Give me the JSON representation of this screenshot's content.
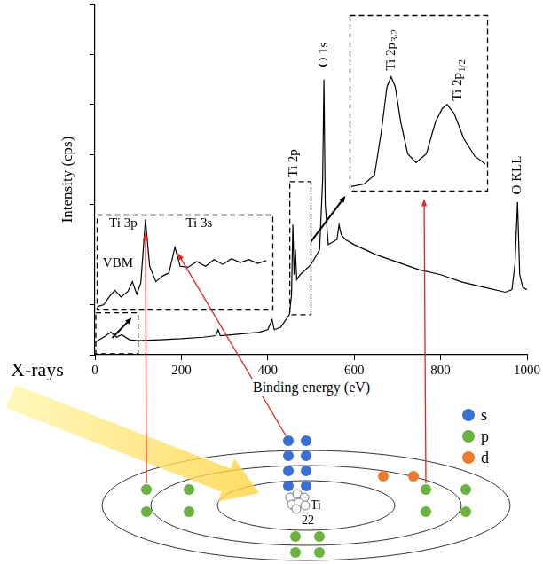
{
  "chart_data": [
    {
      "type": "line",
      "x_label": "Binding energy (eV)",
      "y_label": "Intensity (cps)",
      "x": [
        0,
        10,
        20,
        37,
        50,
        62,
        80,
        100,
        150,
        200,
        250,
        280,
        285,
        290,
        320,
        380,
        400,
        410,
        415,
        430,
        450,
        455,
        458,
        461,
        464,
        467,
        475,
        500,
        520,
        527,
        530,
        533,
        540,
        560,
        565,
        570,
        580,
        600,
        650,
        700,
        750,
        800,
        850,
        900,
        950,
        965,
        972,
        978,
        983,
        990,
        1000
      ],
      "values": [
        0.25,
        0.3,
        0.35,
        0.45,
        0.35,
        0.4,
        0.3,
        0.28,
        0.3,
        0.32,
        0.35,
        0.38,
        0.5,
        0.38,
        0.4,
        0.45,
        0.5,
        0.7,
        0.5,
        0.55,
        0.8,
        1.2,
        2.6,
        1.6,
        2.1,
        1.5,
        1.6,
        1.8,
        2.1,
        3.5,
        5.5,
        3.0,
        2.2,
        2.3,
        2.6,
        2.4,
        2.3,
        2.2,
        2.0,
        1.85,
        1.7,
        1.6,
        1.45,
        1.35,
        1.25,
        1.3,
        1.8,
        3.05,
        1.6,
        1.35,
        1.3
      ],
      "color": "#000000",
      "xlim": [
        0,
        1000
      ],
      "ylim": [
        0,
        7
      ],
      "xticks": [
        0,
        200,
        400,
        600,
        800,
        1000
      ],
      "yticks": [
        0,
        1,
        2,
        3,
        4,
        5,
        6,
        7
      ],
      "tick_labels": "x",
      "grid": false,
      "annotations": [
        {
          "text": "Ti 2p",
          "x": 460,
          "y": 3.55
        },
        {
          "text": "O 1s",
          "x": 530,
          "y": 5.75
        },
        {
          "text": "O KLL",
          "x": 978,
          "y": 3.2
        }
      ]
    },
    {
      "type": "line",
      "x": [
        0.5,
        4,
        7.4,
        10.3,
        13.8,
        17.7,
        20.2,
        22.7,
        25,
        27.6,
        30,
        33.5,
        37.4,
        40.9,
        44.3,
        47.3,
        51.7,
        56.7,
        61.6,
        66.5,
        71.4,
        76.4,
        81.3,
        86.2,
        91.1,
        96
      ],
      "values": [
        0.04,
        0.06,
        0.15,
        0.21,
        0.14,
        0.2,
        0.3,
        0.17,
        0.29,
        0.95,
        0.46,
        0.3,
        0.36,
        0.39,
        0.66,
        0.46,
        0.45,
        0.51,
        0.46,
        0.53,
        0.48,
        0.54,
        0.5,
        0.53,
        0.49,
        0.52
      ],
      "color": "#000000",
      "xlim": [
        0,
        100
      ],
      "ylim": [
        0,
        1
      ],
      "tick_labels": false,
      "annotations": [
        {
          "text": "VBM",
          "x": 12,
          "y": 0.49
        },
        {
          "text": "Ti 3p",
          "x": 15,
          "y": 0.91
        },
        {
          "text": "Ti 3s",
          "x": 58,
          "y": 0.91
        }
      ]
    },
    {
      "type": "line",
      "x": [
        450.25,
        452.1,
        453.6,
        454.6,
        455.4,
        456,
        456.6,
        457.4,
        458.4,
        459.6,
        461.1,
        462.4,
        463.4,
        464.1,
        465.1,
        466.5,
        468.1,
        469.6
      ],
      "values": [
        0.04,
        0.06,
        0.13,
        0.48,
        0.83,
        0.91,
        0.83,
        0.55,
        0.3,
        0.23,
        0.3,
        0.55,
        0.66,
        0.69,
        0.62,
        0.42,
        0.28,
        0.22
      ],
      "color": "#000000",
      "xlim": [
        450,
        470
      ],
      "ylim": [
        0,
        1.4
      ],
      "tick_labels": false,
      "annotations": [
        {
          "text": "Ti 2p3/2",
          "x": 456,
          "y": 0.96
        },
        {
          "text": "Ti 2p1/2",
          "x": 465.7,
          "y": 0.72
        }
      ]
    }
  ],
  "diagram": {
    "beam": "X-rays",
    "atom": {
      "symbol": "Ti",
      "number": 22
    },
    "orbitals": [
      {
        "name": "s",
        "color": "#3a6fd4"
      },
      {
        "name": "p",
        "color": "#6ab33e"
      },
      {
        "name": "d",
        "color": "#ee7b2c"
      }
    ]
  }
}
